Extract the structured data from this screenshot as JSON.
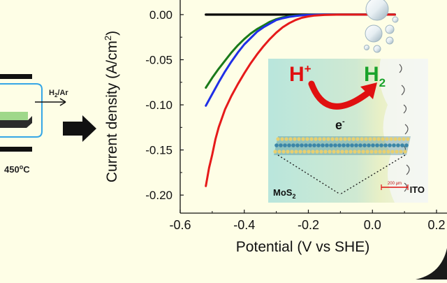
{
  "colors": {
    "background": "#fefee6",
    "black_series": "#000000",
    "green_series": "#1a7a1a",
    "blue_series": "#1f2fe6",
    "red_series": "#e61a1a",
    "inset_bg": "#bfe6e0",
    "h_plus": "#e01010",
    "h2": "#1aa32a",
    "electron_arrow": "#e01010"
  },
  "schematic": {
    "gas_label_main": "H",
    "gas_label_sub": "2",
    "gas_label_tail": "/Ar",
    "temperature_label": "450",
    "temperature_sup": "o",
    "temperature_unit": "C",
    "arrow_icon": "block-arrow-right-icon"
  },
  "inset": {
    "h_plus_main": "H",
    "h_plus_sup": "+",
    "h2_main": "H",
    "h2_sub": "2",
    "electron_main": "e",
    "electron_sup": "-",
    "mos2_main": "MoS",
    "mos2_sub": "2",
    "ito_label": "ITO",
    "scale_bar_label": "200 µm"
  },
  "chart_data": {
    "type": "line",
    "xlabel": "Potential (V vs SHE)",
    "ylabel_main": "Current density (A/cm",
    "ylabel_sup": "2",
    "ylabel_tail": ")",
    "xlim": [
      -0.6,
      0.2
    ],
    "ylim": [
      -0.22,
      0.01
    ],
    "x_ticks": [
      -0.6,
      -0.4,
      -0.2,
      0.0,
      0.2
    ],
    "x_tick_labels": [
      "-0.6",
      "-0.4",
      "-0.2",
      "0.0",
      "0.2"
    ],
    "y_ticks": [
      0.0,
      -0.05,
      -0.1,
      -0.15,
      -0.2
    ],
    "y_tick_labels": [
      "0.00",
      "-0.05",
      "-0.10",
      "-0.15",
      "-0.20"
    ],
    "grid": false,
    "series": [
      {
        "color": "#000000",
        "x": [
          -0.52,
          -0.4,
          -0.2,
          0.0,
          0.07
        ],
        "y": [
          0.0,
          0.0,
          0.0,
          0.0,
          0.0
        ]
      },
      {
        "color": "#1a7a1a",
        "x": [
          -0.52,
          -0.5,
          -0.48,
          -0.46,
          -0.44,
          -0.42,
          -0.4,
          -0.38,
          -0.36,
          -0.34,
          -0.32,
          -0.3,
          -0.28,
          -0.26,
          -0.24,
          -0.22,
          -0.2,
          -0.15,
          -0.1,
          0.0,
          0.07
        ],
        "y": [
          -0.081,
          -0.07,
          -0.06,
          -0.051,
          -0.042,
          -0.034,
          -0.027,
          -0.021,
          -0.016,
          -0.012,
          -0.008,
          -0.005,
          -0.003,
          -0.0018,
          -0.001,
          -0.0005,
          -0.0002,
          0.0,
          0.0,
          0.0,
          0.0
        ]
      },
      {
        "color": "#1f2fe6",
        "x": [
          -0.52,
          -0.5,
          -0.48,
          -0.46,
          -0.44,
          -0.42,
          -0.4,
          -0.38,
          -0.36,
          -0.34,
          -0.32,
          -0.3,
          -0.28,
          -0.26,
          -0.24,
          -0.22,
          -0.2,
          -0.15,
          -0.1,
          0.0,
          0.07
        ],
        "y": [
          -0.101,
          -0.088,
          -0.075,
          -0.063,
          -0.052,
          -0.042,
          -0.033,
          -0.026,
          -0.019,
          -0.014,
          -0.01,
          -0.006,
          -0.004,
          -0.0025,
          -0.0015,
          -0.0008,
          -0.0004,
          0.0,
          0.0,
          0.0,
          0.0
        ]
      },
      {
        "color": "#e61a1a",
        "x": [
          -0.52,
          -0.51,
          -0.5,
          -0.49,
          -0.48,
          -0.46,
          -0.44,
          -0.42,
          -0.4,
          -0.38,
          -0.36,
          -0.34,
          -0.32,
          -0.3,
          -0.28,
          -0.26,
          -0.24,
          -0.22,
          -0.2,
          -0.18,
          -0.15,
          -0.1,
          0.0,
          0.07
        ],
        "y": [
          -0.19,
          -0.17,
          -0.155,
          -0.138,
          -0.125,
          -0.105,
          -0.09,
          -0.077,
          -0.065,
          -0.054,
          -0.044,
          -0.035,
          -0.027,
          -0.02,
          -0.014,
          -0.0095,
          -0.006,
          -0.0035,
          -0.002,
          -0.001,
          -0.0004,
          0.0,
          0.0,
          0.0
        ]
      }
    ]
  }
}
